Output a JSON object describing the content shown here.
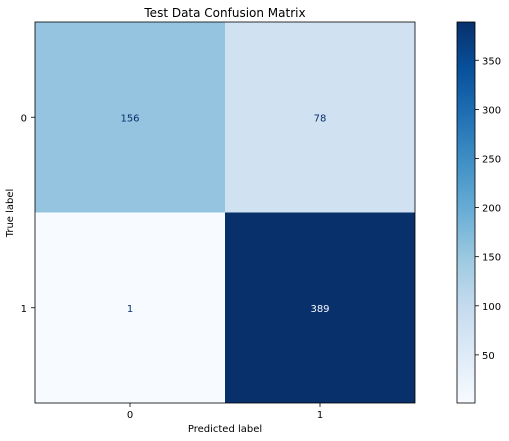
{
  "chart_data": {
    "type": "heatmap",
    "title": "Test Data Confusion Matrix",
    "xlabel": "Predicted label",
    "ylabel": "True label",
    "x_categories": [
      "0",
      "1"
    ],
    "y_categories": [
      "0",
      "1"
    ],
    "values": [
      [
        156,
        78
      ],
      [
        1,
        389
      ]
    ],
    "colormap": "Blues",
    "colorbar": {
      "vmin": 1,
      "vmax": 389,
      "ticks": [
        50,
        100,
        150,
        200,
        250,
        300,
        350
      ],
      "tick_labels": [
        "50",
        "100",
        "150",
        "200",
        "250",
        "300",
        "350"
      ]
    },
    "colors": {
      "cell_0_0": "#94c4df",
      "cell_0_1": "#d0e1f2",
      "cell_1_0": "#f7fbff",
      "cell_1_1": "#08306b",
      "text_dark_bg": "#f7fbff",
      "text_light_bg": "#08306b"
    }
  }
}
